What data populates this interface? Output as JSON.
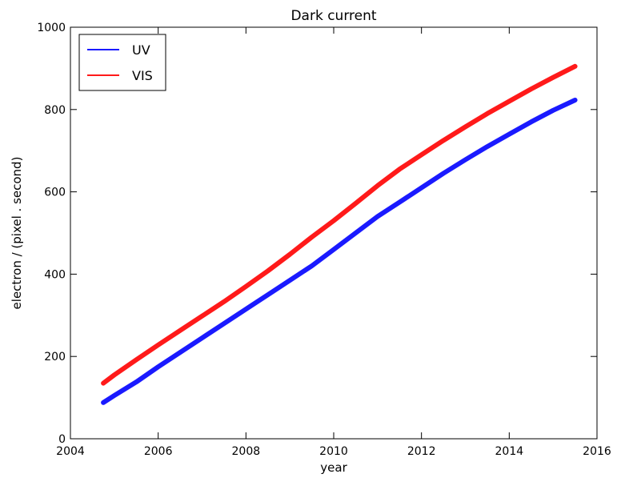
{
  "chart_data": {
    "type": "line",
    "title": "Dark current",
    "xlabel": "year",
    "ylabel": "electron / (pixel . second)",
    "xlim": [
      2004,
      2016
    ],
    "ylim": [
      0,
      1000
    ],
    "xticks": [
      2004,
      2006,
      2008,
      2010,
      2012,
      2014,
      2016
    ],
    "yticks": [
      0,
      200,
      400,
      600,
      800,
      1000
    ],
    "grid": false,
    "legend_position": "top-left",
    "series": [
      {
        "name": "UV",
        "color": "#1a1aff",
        "x": [
          2004.75,
          2005.0,
          2005.5,
          2006.0,
          2006.5,
          2007.0,
          2007.5,
          2008.0,
          2008.5,
          2009.0,
          2009.5,
          2010.0,
          2010.5,
          2011.0,
          2011.5,
          2012.0,
          2012.5,
          2013.0,
          2013.5,
          2014.0,
          2014.5,
          2015.0,
          2015.5
        ],
        "y": [
          88,
          105,
          138,
          175,
          210,
          245,
          280,
          315,
          350,
          385,
          420,
          460,
          500,
          540,
          575,
          610,
          645,
          678,
          710,
          740,
          770,
          798,
          823
        ]
      },
      {
        "name": "VIS",
        "color": "#ff1a1a",
        "x": [
          2004.75,
          2005.0,
          2005.5,
          2006.0,
          2006.5,
          2007.0,
          2007.5,
          2008.0,
          2008.5,
          2009.0,
          2009.5,
          2010.0,
          2010.5,
          2011.0,
          2011.5,
          2012.0,
          2012.5,
          2013.0,
          2013.5,
          2014.0,
          2014.5,
          2015.0,
          2015.5
        ],
        "y": [
          135,
          155,
          192,
          228,
          263,
          298,
          333,
          370,
          408,
          448,
          490,
          530,
          572,
          615,
          655,
          690,
          725,
          758,
          790,
          820,
          850,
          878,
          905
        ]
      }
    ]
  }
}
